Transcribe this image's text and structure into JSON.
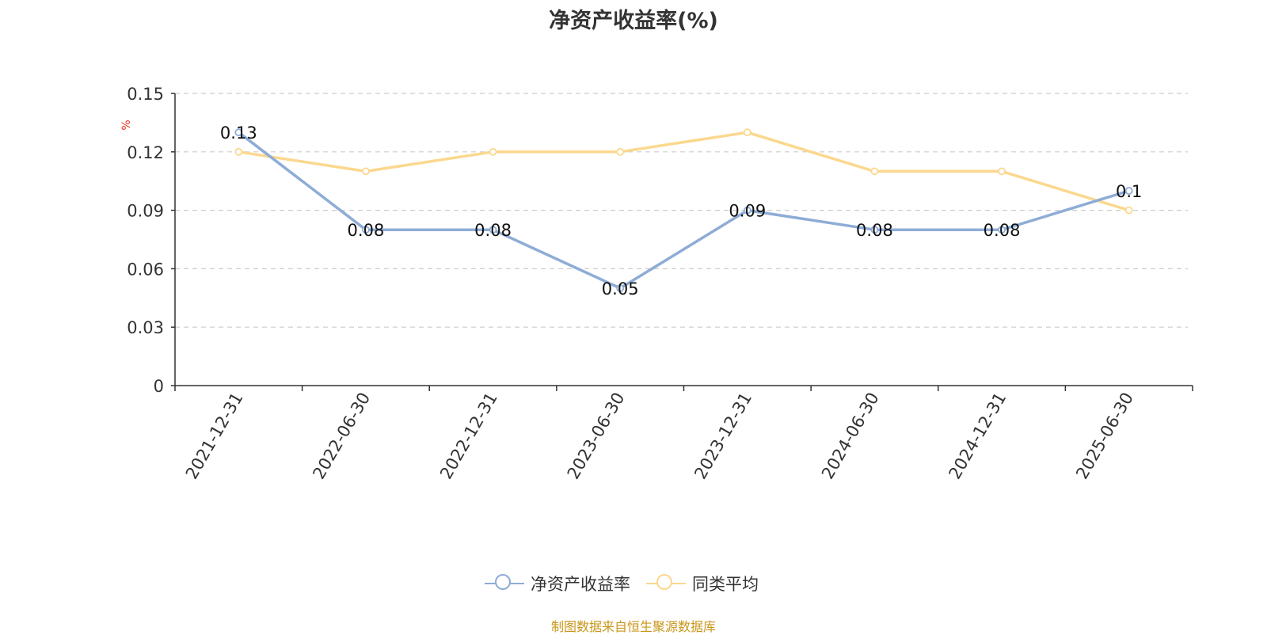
{
  "chart_data": {
    "type": "line",
    "title": "净资产收益率(%)",
    "ylabel": "%",
    "xlabel": "",
    "ylim": [
      0,
      0.15
    ],
    "yticks": [
      "0",
      "0.03",
      "0.06",
      "0.09",
      "0.12",
      "0.15"
    ],
    "grid": true,
    "legend_position": "bottom",
    "categories": [
      "2021-12-31",
      "2022-06-30",
      "2022-12-31",
      "2023-06-30",
      "2023-12-31",
      "2024-06-30",
      "2024-12-31",
      "2025-06-30"
    ],
    "series": [
      {
        "name": "净资产收益率",
        "color": "#8eacd6",
        "values": [
          0.13,
          0.08,
          0.08,
          0.05,
          0.09,
          0.08,
          0.08,
          0.1
        ],
        "data_labels": [
          "0.13",
          "0.08",
          "0.08",
          "0.05",
          "0.09",
          "0.08",
          "0.08",
          "0.1"
        ]
      },
      {
        "name": "同类平均",
        "color": "#fbd88e",
        "values": [
          0.12,
          0.11,
          0.12,
          0.12,
          0.13,
          0.11,
          0.11,
          0.09
        ]
      }
    ]
  },
  "source": "制图数据来自恒生聚源数据库"
}
